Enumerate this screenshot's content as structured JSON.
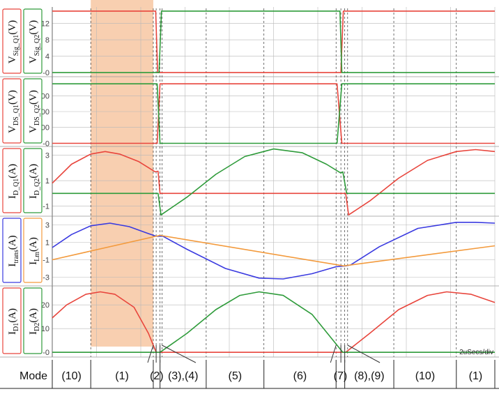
{
  "chart_data": {
    "type": "line",
    "time_per_div": "2uSecs/div",
    "colors": {
      "red": "#e8453c",
      "green": "#2e9b3a",
      "blue": "#3a3ae0",
      "orange": "#f39a3c",
      "highlight": "#f8cfb0"
    },
    "panels": [
      {
        "id": "vsig",
        "labels": [
          {
            "main": "V",
            "sub": "Sig_Q1",
            "unit": "(V)",
            "color": "#e8453c"
          },
          {
            "main": "V",
            "sub": "Sig_Q2",
            "unit": "(V)",
            "color": "#2e9b3a"
          }
        ],
        "ticks": [
          "12",
          "8",
          "4",
          "-0"
        ],
        "tick_values": [
          12,
          8,
          4,
          0
        ],
        "ylim": [
          -1,
          16
        ],
        "series": [
          {
            "color": "#e8453c",
            "points": [
              [
                0,
                15
              ],
              [
                1.075,
                15
              ],
              [
                1.095,
                0
              ],
              [
                3.0,
                0
              ],
              [
                3.025,
                15
              ],
              [
                4.6,
                15
              ]
            ]
          },
          {
            "color": "#2e9b3a",
            "points": [
              [
                0,
                0
              ],
              [
                1.11,
                0
              ],
              [
                1.135,
                15
              ],
              [
                2.99,
                15
              ],
              [
                3.01,
                0
              ],
              [
                4.6,
                0
              ]
            ]
          }
        ]
      },
      {
        "id": "vds",
        "labels": [
          {
            "main": "V",
            "sub": "DS_Q1",
            "unit": "(V)",
            "color": "#e8453c"
          },
          {
            "main": "V",
            "sub": "DS_Q2",
            "unit": "(V)",
            "color": "#2e9b3a"
          }
        ],
        "ticks": [
          "300",
          "200",
          "100",
          "-0"
        ],
        "tick_values": [
          300,
          200,
          100,
          0
        ],
        "ylim": [
          -20,
          420
        ],
        "series": [
          {
            "color": "#e8453c",
            "points": [
              [
                0,
                0
              ],
              [
                1.09,
                0
              ],
              [
                1.12,
                375
              ],
              [
                2.96,
                375
              ],
              [
                3.01,
                0
              ],
              [
                4.6,
                0
              ]
            ]
          },
          {
            "color": "#2e9b3a",
            "points": [
              [
                0,
                375
              ],
              [
                1.09,
                375
              ],
              [
                1.12,
                0
              ],
              [
                2.96,
                0
              ],
              [
                3.01,
                375
              ],
              [
                4.6,
                375
              ]
            ]
          }
        ]
      },
      {
        "id": "id",
        "labels": [
          {
            "main": "I",
            "sub": "D_Q1",
            "unit": "(A)",
            "color": "#e8453c"
          },
          {
            "main": "I",
            "sub": "D_Q2",
            "unit": "(A)",
            "color": "#2e9b3a"
          }
        ],
        "ticks": [
          "3",
          "1",
          "-1"
        ],
        "tick_values": [
          3,
          1,
          -1
        ],
        "ylim": [
          -1.8,
          3.7
        ],
        "series": [
          {
            "color": "#e8453c",
            "points": [
              [
                0,
                0.8
              ],
              [
                0.2,
                2.3
              ],
              [
                0.4,
                3.1
              ],
              [
                0.55,
                3.3
              ],
              [
                0.7,
                3.1
              ],
              [
                0.9,
                2.5
              ],
              [
                1.07,
                1.7
              ],
              [
                1.1,
                1.75
              ],
              [
                1.12,
                0
              ],
              [
                3.05,
                0
              ],
              [
                3.08,
                -1.7
              ],
              [
                3.3,
                -0.6
              ],
              [
                3.6,
                1.2
              ],
              [
                3.9,
                2.6
              ],
              [
                4.2,
                3.3
              ],
              [
                4.4,
                3.45
              ],
              [
                4.6,
                3.3
              ]
            ]
          },
          {
            "color": "#2e9b3a",
            "points": [
              [
                0,
                0
              ],
              [
                1.1,
                0
              ],
              [
                1.13,
                -1.7
              ],
              [
                1.4,
                -0.3
              ],
              [
                1.7,
                1.5
              ],
              [
                2.0,
                2.9
              ],
              [
                2.3,
                3.5
              ],
              [
                2.6,
                3.2
              ],
              [
                2.85,
                2.3
              ],
              [
                3.0,
                1.6
              ],
              [
                3.02,
                1.7
              ],
              [
                3.06,
                0
              ],
              [
                4.6,
                0
              ]
            ]
          }
        ]
      },
      {
        "id": "itrans",
        "labels": [
          {
            "main": "I",
            "sub": "trans",
            "unit": "(A)",
            "color": "#3a3ae0"
          },
          {
            "main": "I",
            "sub": "Lm",
            "unit": "(A)",
            "color": "#f39a3c"
          }
        ],
        "ticks": [
          "3",
          "1",
          "-1",
          "-3"
        ],
        "tick_values": [
          3,
          1,
          -1,
          -3
        ],
        "ylim": [
          -4,
          4
        ],
        "series": [
          {
            "color": "#3a3ae0",
            "points": [
              [
                0,
                0.4
              ],
              [
                0.2,
                1.9
              ],
              [
                0.4,
                2.9
              ],
              [
                0.6,
                3.2
              ],
              [
                0.8,
                2.8
              ],
              [
                1.0,
                2.0
              ],
              [
                1.08,
                1.7
              ],
              [
                1.15,
                1.7
              ],
              [
                1.4,
                0.2
              ],
              [
                1.8,
                -2.0
              ],
              [
                2.15,
                -3.1
              ],
              [
                2.4,
                -3.2
              ],
              [
                2.7,
                -2.6
              ],
              [
                2.95,
                -1.8
              ],
              [
                3.05,
                -1.7
              ],
              [
                3.1,
                -1.6
              ],
              [
                3.4,
                0.5
              ],
              [
                3.8,
                2.6
              ],
              [
                4.2,
                3.3
              ],
              [
                4.4,
                3.3
              ],
              [
                4.6,
                3.2
              ]
            ]
          },
          {
            "color": "#f39a3c",
            "points": [
              [
                0,
                -1.0
              ],
              [
                1.12,
                1.8
              ],
              [
                3.03,
                -1.7
              ],
              [
                4.6,
                0.6
              ]
            ]
          }
        ]
      },
      {
        "id": "idiode",
        "labels": [
          {
            "main": "I",
            "sub": "D1",
            "unit": "(A)",
            "color": "#e8453c"
          },
          {
            "main": "I",
            "sub": "D2",
            "unit": "(A)",
            "color": "#2e9b3a"
          }
        ],
        "ticks": [
          "20",
          "10",
          "-0"
        ],
        "tick_values": [
          20,
          10,
          0
        ],
        "ylim": [
          -2,
          28
        ],
        "series": [
          {
            "color": "#e8453c",
            "points": [
              [
                0,
                14.5
              ],
              [
                0.15,
                20
              ],
              [
                0.35,
                24.5
              ],
              [
                0.5,
                25.5
              ],
              [
                0.65,
                24.5
              ],
              [
                0.85,
                19
              ],
              [
                1.0,
                8
              ],
              [
                1.08,
                0
              ],
              [
                3.05,
                0
              ],
              [
                3.3,
                8
              ],
              [
                3.6,
                18
              ],
              [
                3.9,
                24
              ],
              [
                4.1,
                25.5
              ],
              [
                4.35,
                24.5
              ],
              [
                4.6,
                21
              ]
            ]
          },
          {
            "color": "#2e9b3a",
            "points": [
              [
                0,
                0
              ],
              [
                1.12,
                0
              ],
              [
                1.4,
                8
              ],
              [
                1.7,
                18
              ],
              [
                1.95,
                24
              ],
              [
                2.15,
                25.5
              ],
              [
                2.4,
                24
              ],
              [
                2.7,
                16
              ],
              [
                2.9,
                6
              ],
              [
                3.02,
                0
              ],
              [
                4.6,
                0
              ]
            ]
          }
        ]
      }
    ],
    "highlight_range": [
      0.4,
      1.05
    ],
    "mode_label": "Mode",
    "modes": [
      {
        "label": "(10)",
        "start": 0,
        "end": 0.4
      },
      {
        "label": "(1)",
        "start": 0.4,
        "end": 1.05
      },
      {
        "label": "(2)",
        "start": 1.05,
        "end": 1.12
      },
      {
        "label": "(3),(4)",
        "start": 1.12,
        "end": 1.6
      },
      {
        "label": "(5)",
        "start": 1.6,
        "end": 2.2
      },
      {
        "label": "(6)",
        "start": 2.2,
        "end": 2.95
      },
      {
        "label": "(7)",
        "start": 2.95,
        "end": 3.04
      },
      {
        "label": "(8),(9)",
        "start": 3.04,
        "end": 3.55
      },
      {
        "label": "(10)",
        "start": 3.55,
        "end": 4.2
      },
      {
        "label": "(1)",
        "start": 4.2,
        "end": 4.6
      }
    ],
    "mode_boundaries": [
      0.4,
      1.05,
      1.08,
      1.12,
      1.14,
      1.6,
      2.2,
      2.95,
      3.0,
      3.04,
      3.07,
      3.55,
      4.2
    ],
    "x_range": [
      0,
      4.6
    ]
  }
}
